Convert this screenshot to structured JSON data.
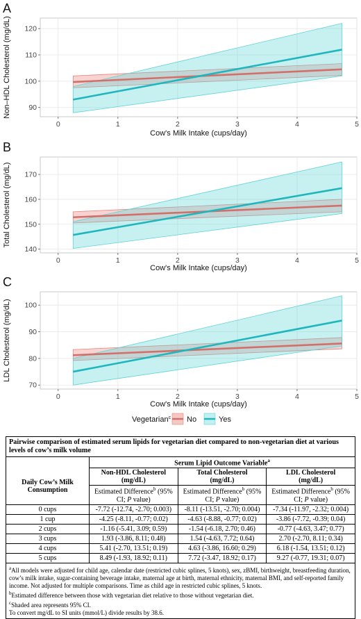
{
  "chart_data": [
    {
      "type": "line",
      "panel_label": "A",
      "xlabel": "Cow's Milk Intake (cups/day)",
      "ylabel": "Non–HDL Cholesterol (mg/dL)",
      "xlim": [
        -0.3,
        5.0
      ],
      "ylim": [
        86.5,
        124
      ],
      "xticks": [
        0,
        1,
        2,
        3,
        4,
        5
      ],
      "yticks": [
        90,
        100,
        110,
        120
      ],
      "x": [
        0.25,
        4.75
      ],
      "series": [
        {
          "name": "No",
          "values": [
            99.7,
            104.5
          ],
          "lower": [
            97.5,
            102.2
          ],
          "upper": [
            102.0,
            106.7
          ],
          "color": "#e8837b",
          "line_color": "#d1706a"
        },
        {
          "name": "Yes",
          "values": [
            93.0,
            112.0
          ],
          "lower": [
            88.0,
            102.0
          ],
          "upper": [
            98.0,
            122.0
          ],
          "color": "#5fd3d6",
          "line_color": "#1fb7bd"
        }
      ]
    },
    {
      "type": "line",
      "panel_label": "B",
      "xlabel": "Cow's Milk Intake (cups/day)",
      "ylabel": "Total Cholesterol (mg/dL)",
      "xlim": [
        -0.3,
        5.0
      ],
      "ylim": [
        138.5,
        177
      ],
      "xticks": [
        0,
        1,
        2,
        3,
        4,
        5
      ],
      "yticks": [
        140,
        150,
        160,
        170
      ],
      "x": [
        0.25,
        4.75
      ],
      "series": [
        {
          "name": "No",
          "values": [
            152.8,
            157.5
          ],
          "lower": [
            150.5,
            155.0
          ],
          "upper": [
            155.0,
            160.0
          ],
          "color": "#e8837b",
          "line_color": "#d1706a"
        },
        {
          "name": "Yes",
          "values": [
            145.7,
            164.5
          ],
          "lower": [
            140.3,
            154.3
          ],
          "upper": [
            151.0,
            175.0
          ],
          "color": "#5fd3d6",
          "line_color": "#1fb7bd"
        }
      ]
    },
    {
      "type": "line",
      "panel_label": "C",
      "xlabel": "Cow's Milk Intake (cups/day)",
      "ylabel": "LDL Cholesterol (mg/dL)",
      "xlim": [
        -0.3,
        5.0
      ],
      "ylim": [
        68.5,
        105
      ],
      "xticks": [
        0,
        1,
        2,
        3,
        4,
        5
      ],
      "yticks": [
        70,
        80,
        90,
        100
      ],
      "x": [
        0.25,
        4.75
      ],
      "series": [
        {
          "name": "No",
          "values": [
            81.2,
            85.6
          ],
          "lower": [
            79.2,
            83.6
          ],
          "upper": [
            83.3,
            87.8
          ],
          "color": "#e8837b",
          "line_color": "#d1706a"
        },
        {
          "name": "Yes",
          "values": [
            75.0,
            94.2
          ],
          "lower": [
            70.0,
            84.7
          ],
          "upper": [
            80.0,
            103.5
          ],
          "color": "#5fd3d6",
          "line_color": "#1fb7bd"
        }
      ]
    }
  ],
  "legend": {
    "title": "Vegetarian",
    "title_sup": "c",
    "items": [
      "No",
      "Yes"
    ]
  },
  "table": {
    "title": "Pairwise comparison of estimated serum lipids for vegetarian diet compared to non-vegetarian diet at various levels of cow’s milk volume",
    "group_header": "Serum Lipid Outcome Variable",
    "group_header_sup": "a",
    "row_header": "Daily Cow’s Milk Consumption",
    "columns": [
      {
        "name": "Non-HDL Cholesterol",
        "unit": "(mg/dL)"
      },
      {
        "name": "Total Cholesterol",
        "unit": "(mg/dL)"
      },
      {
        "name": "LDL Cholesterol",
        "unit": "(mg/dL)"
      }
    ],
    "sub_header_a": "Estimated Difference",
    "sub_header_sup": "b",
    "sub_header_b": " (95% CI; ",
    "sub_header_p": "P",
    "sub_header_c": " value)",
    "rows": [
      {
        "label": "0 cups",
        "values": [
          "-7.72 (-12.74, -2.70; 0.003)",
          "-8.11 (-13.51, -2.70; 0.004)",
          "-7.34 (-11.97, -2.32; 0.004)"
        ]
      },
      {
        "label": "1 cup",
        "values": [
          "-4.25 (-8.11, -0.77; 0.02)",
          "-4.63 (-8.88, -0.77; 0.02)",
          "-3.86 (-7.72, -0.39; 0.04)"
        ]
      },
      {
        "label": "2 cups",
        "values": [
          "-1.16 (-5.41, 3.09; 0.59)",
          "-1.54 (-6.18, 2.70; 0.46)",
          "-0.77 (-4.63, 3.47; 0.77)"
        ]
      },
      {
        "label": "3 cups",
        "values": [
          "1.93 (-3.86, 8.11; 0.48)",
          "1.54 (-4.63, 7.72; 0.64)",
          "2.70 (-2.70, 8.11; 0.34)"
        ]
      },
      {
        "label": "4 cups",
        "values": [
          "5.41 (-2.70, 13.51; 0.19)",
          "4.63 (-3.86, 16.60; 0.29)",
          "6.18 (-1.54, 13.51; 0.12)"
        ]
      },
      {
        "label": "5 cups",
        "values": [
          "8.49 (-1.93, 18.92; 0.11)",
          "7.72 (-3.47, 18.92; 0.17)",
          "9.27 (-0.77, 19.31; 0.07)"
        ]
      }
    ],
    "notes": [
      {
        "sup": "a",
        "text": "All models were adjusted for child age, calendar date (restricted cubic splines, 5 knots), sex, zBMI, birthweight, breastfeeding duration, cow’s milk intake, sugar-containing beverage intake, maternal age at birth, maternal ethnicity, maternal BMI, and self-reported family income. Not adjusted for multiple comparisons. Time as child age in restricted cubic splines, 5 knots."
      },
      {
        "sup": "b",
        "text": "Estimated difference between those with vegetarian diet relative to those without vegetarian diet."
      },
      {
        "sup": "c",
        "text": "Shaded area represents 95% CI."
      },
      {
        "sup": "",
        "text": "To convert mg/dL to SI units (mmol/L) divide results by 38.6."
      }
    ]
  }
}
